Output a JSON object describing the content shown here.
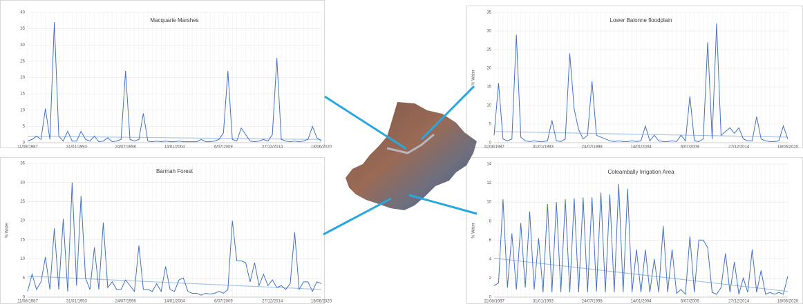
{
  "chart_data": [
    {
      "type": "line",
      "title": "Macquarie Marshes",
      "color": "#4472c4",
      "trend_color": "#a9c4ea",
      "ylim": [
        0,
        40
      ],
      "yticks": [
        0,
        5,
        10,
        15,
        20,
        25,
        30,
        35,
        40
      ],
      "grid": true,
      "categories": [
        "11/08/1987",
        null,
        null,
        null,
        null,
        null,
        null,
        null,
        null,
        null,
        null,
        "31/01/1993",
        null,
        null,
        null,
        null,
        null,
        null,
        null,
        null,
        null,
        null,
        "24/07/1998",
        null,
        null,
        null,
        null,
        null,
        null,
        null,
        null,
        null,
        null,
        "14/01/2004",
        null,
        null,
        null,
        null,
        null,
        null,
        null,
        null,
        null,
        null,
        "6/07/2009",
        null,
        null,
        null,
        null,
        null,
        null,
        null,
        null,
        null,
        null,
        "27/12/2014",
        null,
        null,
        null,
        null,
        null,
        null,
        null,
        null,
        null,
        null,
        "18/06/2020"
      ],
      "values": [
        0.5,
        1,
        2,
        1,
        10.5,
        1,
        37,
        2,
        0.5,
        3.5,
        0.5,
        0.5,
        3.5,
        1,
        0.5,
        2,
        0.3,
        0.5,
        1.5,
        0.3,
        0.5,
        1,
        22,
        1,
        0.5,
        1,
        9,
        0.5,
        0.3,
        0.5,
        0.3,
        0.5,
        0.3,
        0.3,
        0.5,
        0.3,
        0.3,
        0.3,
        0.3,
        1,
        0.3,
        0.3,
        0.5,
        1,
        3,
        22,
        1,
        0.5,
        4.5,
        2.5,
        0.5,
        0.3,
        0.5,
        1,
        0.5,
        2.5,
        26,
        1,
        0.5,
        0.3,
        0.5,
        0.3,
        0.5,
        1,
        5,
        1.5,
        0.5
      ],
      "trend": [
        2,
        1
      ]
    },
    {
      "type": "line",
      "title": "Lower Balonne floodplain",
      "y_label": "% Water",
      "color": "#4472c4",
      "trend_color": "#a9c4ea",
      "ylim": [
        0,
        35
      ],
      "yticks": [
        0,
        5,
        10,
        15,
        20,
        25,
        30,
        35
      ],
      "grid": true,
      "categories": [
        "11/08/1987",
        null,
        null,
        null,
        null,
        null,
        null,
        null,
        null,
        null,
        null,
        "31/01/1993",
        null,
        null,
        null,
        null,
        null,
        null,
        null,
        null,
        null,
        null,
        "24/07/1998",
        null,
        null,
        null,
        null,
        null,
        null,
        null,
        null,
        null,
        null,
        "14/01/2004",
        null,
        null,
        null,
        null,
        null,
        null,
        null,
        null,
        null,
        null,
        "6/07/2009",
        null,
        null,
        null,
        null,
        null,
        null,
        null,
        null,
        null,
        null,
        "27/12/2014",
        null,
        null,
        null,
        null,
        null,
        null,
        null,
        null,
        null,
        null,
        "18/06/2020"
      ],
      "values": [
        2,
        16,
        1,
        0.5,
        1,
        29,
        1.5,
        0.5,
        0.3,
        0.5,
        0.3,
        0.3,
        0.5,
        6,
        0.5,
        0.3,
        1,
        24,
        9,
        3.5,
        1,
        2,
        16.5,
        2,
        1.5,
        1,
        0.5,
        0.3,
        0.5,
        0.3,
        0.3,
        0.5,
        0.3,
        0.5,
        4.5,
        0.5,
        2,
        0.5,
        0.3,
        0.3,
        0.5,
        0.3,
        2,
        0.5,
        12.5,
        0.5,
        0.3,
        1,
        27,
        1,
        32,
        2,
        3,
        4,
        2.5,
        4,
        1,
        0.5,
        0.5,
        7,
        1,
        0.5,
        0.3,
        0.3,
        0.5,
        4.5,
        1
      ],
      "trend": [
        3,
        1.5
      ]
    },
    {
      "type": "line",
      "title": "Barmah Forest",
      "y_label": "% Water",
      "color": "#4472c4",
      "trend_color": "#a9c4ea",
      "ylim": [
        0,
        35
      ],
      "yticks": [
        0,
        5,
        10,
        15,
        20,
        25,
        30,
        35
      ],
      "grid": true,
      "categories": [
        "11/08/1987",
        null,
        null,
        null,
        null,
        null,
        null,
        null,
        null,
        null,
        null,
        "31/01/1993",
        null,
        null,
        null,
        null,
        null,
        null,
        null,
        null,
        null,
        null,
        "24/07/1998",
        null,
        null,
        null,
        null,
        null,
        null,
        null,
        null,
        null,
        null,
        "14/01/2004",
        null,
        null,
        null,
        null,
        null,
        null,
        null,
        null,
        null,
        null,
        "6/07/2009",
        null,
        null,
        null,
        null,
        null,
        null,
        null,
        null,
        null,
        null,
        "27/12/2014",
        null,
        null,
        null,
        null,
        null,
        null,
        null,
        null,
        null,
        null,
        "18/06/2020"
      ],
      "values": [
        1.5,
        6,
        2,
        4,
        10.5,
        2,
        18,
        2,
        20.5,
        1.5,
        30,
        3,
        26.5,
        5,
        2,
        13,
        2,
        19.5,
        2.5,
        4,
        2,
        2,
        4.5,
        3,
        1.5,
        13.5,
        2,
        2,
        1.5,
        3.5,
        1.5,
        8,
        2,
        1.5,
        4.5,
        5,
        1.5,
        1,
        1,
        0.5,
        1,
        0.8,
        1,
        1.5,
        1,
        2,
        20,
        9.5,
        9.5,
        9,
        4,
        9,
        3,
        6,
        3,
        4.5,
        2.5,
        3,
        2,
        3.5,
        17,
        2,
        4,
        4,
        1.5,
        4,
        3.5
      ],
      "trend": [
        5.5,
        2
      ]
    },
    {
      "type": "line",
      "title": "Coleambally Irrigation Area",
      "y_label": "% Water",
      "color": "#4472c4",
      "trend_color": "#a9c4ea",
      "ylim": [
        0,
        14
      ],
      "yticks": [
        0,
        2,
        4,
        6,
        8,
        10,
        12,
        14
      ],
      "grid": true,
      "categories": [
        "11/08/1987",
        null,
        null,
        null,
        null,
        null,
        null,
        null,
        null,
        null,
        null,
        "31/01/1993",
        null,
        null,
        null,
        null,
        null,
        null,
        null,
        null,
        null,
        null,
        "24/07/1998",
        null,
        null,
        null,
        null,
        null,
        null,
        null,
        null,
        null,
        null,
        "14/01/2004",
        null,
        null,
        null,
        null,
        null,
        null,
        null,
        null,
        null,
        null,
        "6/07/2009",
        null,
        null,
        null,
        null,
        null,
        null,
        null,
        null,
        null,
        null,
        "27/12/2014",
        null,
        null,
        null,
        null,
        null,
        null,
        null,
        null,
        null,
        null,
        "18/06/2020"
      ],
      "values": [
        1.2,
        1.5,
        10.3,
        1,
        6.7,
        0.8,
        7.8,
        1,
        9,
        0.8,
        6.2,
        0.5,
        9.8,
        0.5,
        10,
        0.5,
        10.3,
        0.5,
        10.4,
        0.5,
        10.5,
        0.5,
        10.5,
        0.6,
        11,
        0.5,
        10.8,
        0.5,
        11.9,
        0.5,
        11.4,
        0.5,
        5,
        0.5,
        5,
        0.5,
        4,
        0.5,
        7.5,
        0.5,
        5,
        0.4,
        0.8,
        0.3,
        6.4,
        0.5,
        6,
        6,
        5.2,
        0.5,
        0.3,
        1,
        4.6,
        0.5,
        3.7,
        0.3,
        2,
        0.5,
        5,
        0.5,
        2.8,
        0.3,
        0.5,
        0.3,
        0.5,
        0.3,
        2.2
      ],
      "trend": [
        4.1,
        0.6
      ]
    }
  ]
}
